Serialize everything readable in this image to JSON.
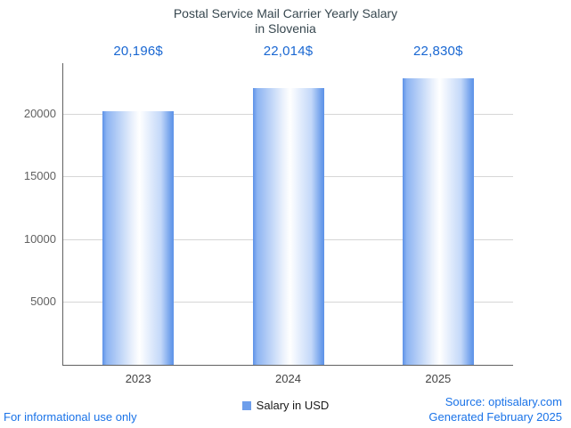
{
  "chart_data": {
    "type": "bar",
    "title": "Postal Service Mail Carrier Yearly Salary",
    "subtitle": "in Slovenia",
    "categories": [
      "2023",
      "2024",
      "2025"
    ],
    "values": [
      20196,
      22014,
      22830
    ],
    "value_labels": [
      "20,196$",
      "22,014$",
      "22,830$"
    ],
    "series_name": "Salary in USD",
    "ylim": [
      0,
      24000
    ],
    "yticks": [
      5000,
      10000,
      15000,
      20000
    ],
    "grid": true,
    "legend_position": "bottom",
    "bar_gradient": [
      "#5d92e8",
      "#ffffff",
      "#5d92e8"
    ]
  },
  "legend": {
    "label": "Salary in USD",
    "marker_color": "#6d9eeb"
  },
  "footer": {
    "disclaimer": "For informational use only",
    "source": "Source: optisalary.com",
    "generated": "Generated February 2025"
  },
  "colors": {
    "annotation": "#1967d2",
    "footer_link": "#1a73e8",
    "axis_text": "#616161",
    "category_text": "#424242",
    "title_text": "#37474f",
    "gridline": "#d6d6d6",
    "axis_line": "#616161"
  }
}
